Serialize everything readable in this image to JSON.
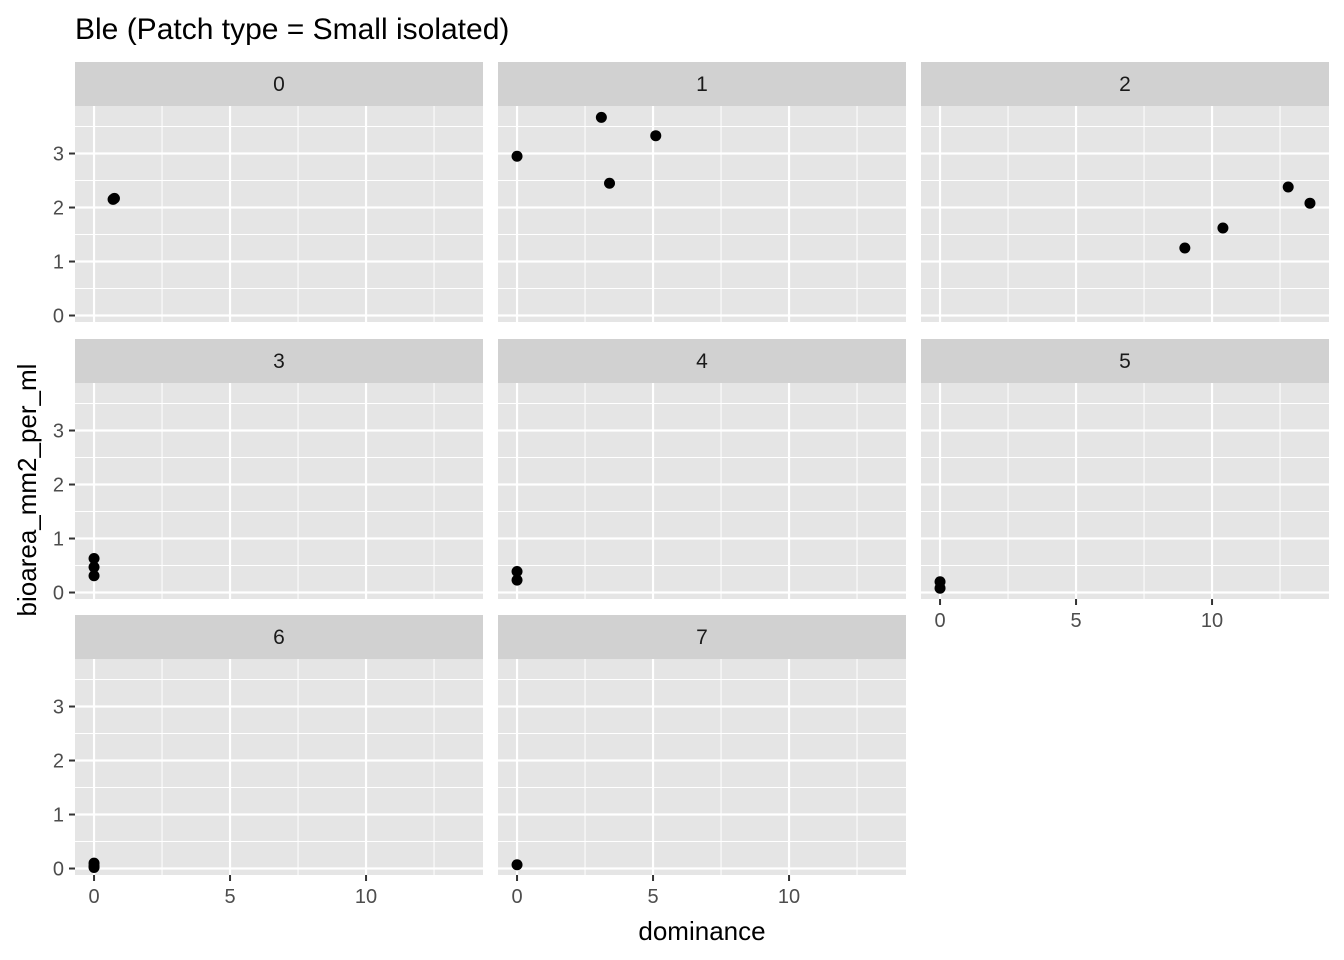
{
  "chart_data": {
    "type": "scatter",
    "title": "Ble (Patch type = Small isolated)",
    "xlabel": "dominance",
    "ylabel": "bioarea_mm2_per_ml",
    "xlim": [
      -0.7,
      14.3
    ],
    "ylim": [
      -0.12,
      3.88
    ],
    "x_ticks": [
      0,
      5,
      10
    ],
    "y_ticks": [
      0,
      1,
      2,
      3
    ],
    "grid": true,
    "layout": "facet_wrap 3 columns",
    "colors": {
      "panel_bg": "#e5e5e5",
      "grid": "#ffffff",
      "strip_bg": "#d1d1d1",
      "point": "#000000"
    },
    "panels": [
      {
        "label": "0",
        "points": [
          [
            0.7,
            2.15
          ],
          [
            0.75,
            2.17
          ]
        ]
      },
      {
        "label": "1",
        "points": [
          [
            0.0,
            2.95
          ],
          [
            3.1,
            3.67
          ],
          [
            3.4,
            2.45
          ],
          [
            5.1,
            3.33
          ]
        ]
      },
      {
        "label": "2",
        "points": [
          [
            9.0,
            1.25
          ],
          [
            10.4,
            1.62
          ],
          [
            12.8,
            2.38
          ],
          [
            13.6,
            2.08
          ]
        ]
      },
      {
        "label": "3",
        "points": [
          [
            0.0,
            0.63
          ],
          [
            0.0,
            0.47
          ],
          [
            0.0,
            0.31
          ]
        ]
      },
      {
        "label": "4",
        "points": [
          [
            0.0,
            0.39
          ],
          [
            0.0,
            0.23
          ]
        ]
      },
      {
        "label": "5",
        "points": [
          [
            0.0,
            0.2
          ],
          [
            0.0,
            0.08
          ]
        ]
      },
      {
        "label": "6",
        "points": [
          [
            0.0,
            0.1
          ],
          [
            0.0,
            0.05
          ],
          [
            0.0,
            0.02
          ]
        ]
      },
      {
        "label": "7",
        "points": [
          [
            0.0,
            0.07
          ]
        ]
      }
    ]
  }
}
